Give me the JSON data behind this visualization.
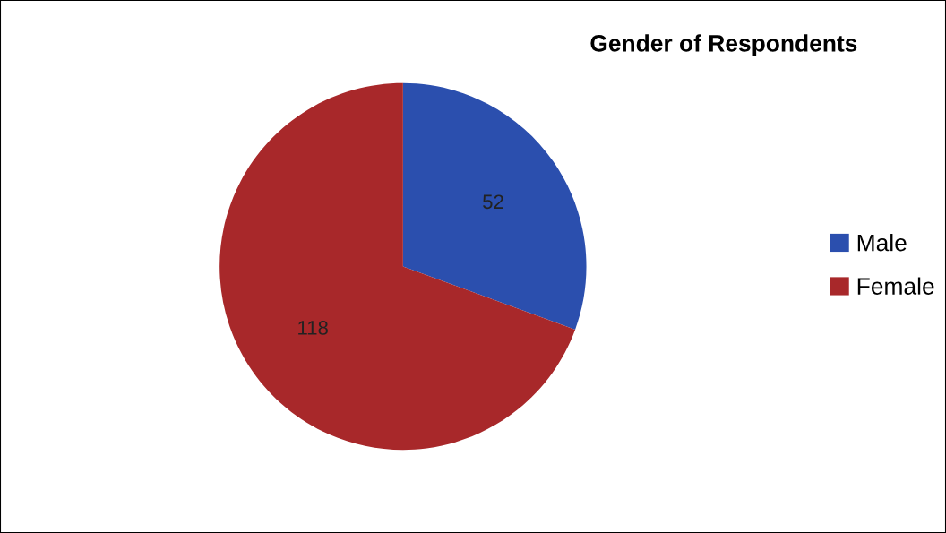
{
  "chart_data": {
    "type": "pie",
    "title": "Gender of Respondents",
    "categories": [
      "Male",
      "Female"
    ],
    "values": [
      52,
      118
    ],
    "colors": [
      "#2b4fae",
      "#a8282a"
    ],
    "data_labels": true,
    "legend": "right"
  }
}
